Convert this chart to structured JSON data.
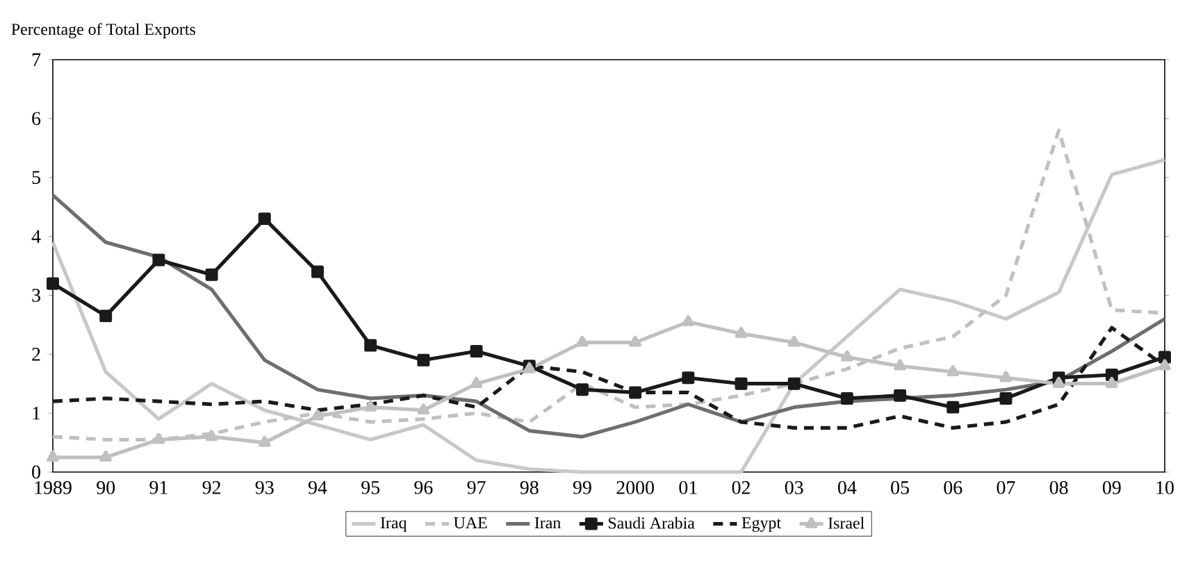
{
  "chart_data": {
    "type": "line",
    "ylabel": "Percentage of Total Exports",
    "categories": [
      "1989",
      "90",
      "91",
      "92",
      "93",
      "94",
      "95",
      "96",
      "97",
      "98",
      "99",
      "2000",
      "01",
      "02",
      "03",
      "04",
      "05",
      "06",
      "07",
      "08",
      "09",
      "10"
    ],
    "ylim": [
      0,
      7
    ],
    "yticks": [
      0,
      1,
      2,
      3,
      4,
      5,
      6,
      7
    ],
    "grid": false,
    "legend": "bottom",
    "series": [
      {
        "name": "Iraq",
        "color": "#c8c8c8",
        "line_style": "solid",
        "marker": "none",
        "values": [
          3.9,
          1.7,
          0.9,
          1.5,
          1.05,
          0.8,
          0.55,
          0.8,
          0.2,
          0.05,
          0,
          0,
          0,
          0,
          1.5,
          2.3,
          3.1,
          2.9,
          2.6,
          3.05,
          5.05,
          5.3
        ]
      },
      {
        "name": "UAE",
        "color": "#c0c0c0",
        "line_style": "dashed",
        "marker": "none",
        "values": [
          0.6,
          0.55,
          0.55,
          0.65,
          0.85,
          1.0,
          0.85,
          0.9,
          1.0,
          0.85,
          1.5,
          1.1,
          1.15,
          1.3,
          1.5,
          1.75,
          2.1,
          2.3,
          3.0,
          5.8,
          2.75,
          2.7
        ]
      },
      {
        "name": "Iran",
        "color": "#6e6e6e",
        "line_style": "solid",
        "marker": "none",
        "values": [
          4.7,
          3.9,
          3.65,
          3.1,
          1.9,
          1.4,
          1.25,
          1.3,
          1.2,
          0.7,
          0.6,
          0.85,
          1.15,
          0.85,
          1.1,
          1.2,
          1.25,
          1.3,
          1.4,
          1.55,
          2.05,
          2.6
        ]
      },
      {
        "name": "Saudi Arabia",
        "color": "#1a1a1a",
        "line_style": "solid",
        "marker": "square",
        "values": [
          3.2,
          2.65,
          3.6,
          3.35,
          4.3,
          3.4,
          2.15,
          1.9,
          2.05,
          1.8,
          1.4,
          1.35,
          1.6,
          1.5,
          1.5,
          1.25,
          1.3,
          1.1,
          1.25,
          1.6,
          1.65,
          1.95
        ]
      },
      {
        "name": "Egypt",
        "color": "#1a1a1a",
        "line_style": "dashed",
        "marker": "none",
        "values": [
          1.2,
          1.25,
          1.2,
          1.15,
          1.2,
          1.05,
          1.15,
          1.3,
          1.1,
          1.8,
          1.7,
          1.35,
          1.35,
          0.85,
          0.75,
          0.75,
          0.95,
          0.75,
          0.85,
          1.15,
          2.45,
          1.8
        ]
      },
      {
        "name": "Israel",
        "color": "#c0c0c0",
        "line_style": "solid",
        "marker": "triangle",
        "values": [
          0.25,
          0.25,
          0.55,
          0.6,
          0.5,
          0.95,
          1.1,
          1.05,
          1.5,
          1.75,
          2.2,
          2.2,
          2.55,
          2.35,
          2.2,
          1.95,
          1.8,
          1.7,
          1.6,
          1.5,
          1.5,
          1.8
        ]
      }
    ]
  }
}
